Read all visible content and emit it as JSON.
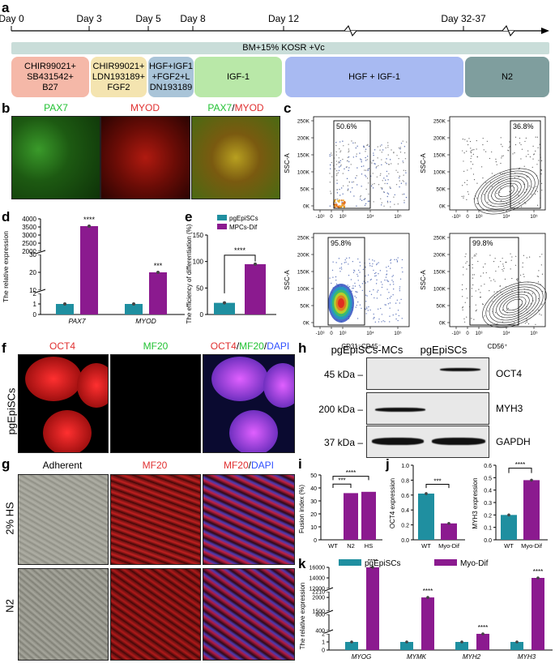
{
  "panel_letters": [
    "a",
    "b",
    "c",
    "d",
    "e",
    "f",
    "g",
    "h",
    "i",
    "j",
    "k"
  ],
  "timeline": {
    "days": [
      "Day 0",
      "Day 3",
      "Day 5",
      "Day 8",
      "Day 12",
      "Day 32-37"
    ],
    "medium": "BM+15% KOSR +Vc",
    "stages": [
      {
        "label": "CHIR99021+\nSB431542+\nB27",
        "color": "#f5b8a8"
      },
      {
        "label": "CHIR99021+\nLDN193189+\nFGF2",
        "color": "#f4e4b0"
      },
      {
        "label": "HGF+IGF1\n+FGF2+L\nDN193189",
        "color": "#a9c4d8"
      },
      {
        "label": "IGF-1",
        "color": "#b9e8a8"
      },
      {
        "label": "HGF + IGF-1",
        "color": "#a8baf2"
      },
      {
        "label": "N2",
        "color": "#7f9e9e"
      }
    ]
  },
  "panel_b": {
    "titles": [
      "PAX7",
      "MYOD",
      "PAX7",
      "/",
      "MYOD"
    ]
  },
  "panel_c": {
    "gates": [
      "50.6%",
      "36.8%",
      "95.8%",
      "99.8%"
    ],
    "ylabel": "SSC-A",
    "yticks": [
      "250K",
      "200K",
      "150K",
      "100K",
      "50K",
      "0K"
    ],
    "xticks": [
      "-10³",
      "0",
      "10³",
      "10⁴",
      "10⁵"
    ],
    "xlabel_left": "CD31⁻CD45⁻",
    "xlabel_right": "CD56⁺"
  },
  "panel_d": {
    "chart_data": {
      "type": "bar",
      "ylabel": "The relative expression",
      "categories": [
        "PAX7",
        "MYOD"
      ],
      "series": [
        {
          "name": "pgEpiSCs",
          "values": [
            1,
            1
          ]
        },
        {
          "name": "MPCs-Dif",
          "values": [
            3550,
            20
          ]
        }
      ],
      "significance": [
        "****",
        "***"
      ],
      "yticks": [
        "0",
        "1",
        "2",
        "10",
        "20",
        "30",
        "2000",
        "2500",
        "3000",
        "3500",
        "4000"
      ]
    }
  },
  "panel_e": {
    "chart_data": {
      "type": "bar",
      "ylabel": "The efficiency of differentiation (%)",
      "categories": [
        "pgEpiSCs",
        "MPCs-Dif"
      ],
      "values": [
        22,
        95
      ],
      "significance": "****",
      "yticks": [
        "0",
        "50",
        "100",
        "150"
      ]
    },
    "legend": [
      "pgEpiSCs",
      "MPCs-Dif"
    ]
  },
  "panel_f": {
    "titles": [
      "OCT4",
      "MF20",
      "OCT4",
      "/",
      "MF20",
      "/",
      "DAPI"
    ],
    "rowlabel": "pgEpiSCs"
  },
  "panel_g": {
    "titles": [
      "Adherent",
      "MF20",
      "MF20",
      "/",
      "DAPI"
    ],
    "rows": [
      "2% HS",
      "N2"
    ]
  },
  "panel_h": {
    "columns": [
      "pgEpiSCs-MCs",
      "pgEpiSCs"
    ],
    "rows": [
      {
        "kda": "45 kDa",
        "protein": "OCT4"
      },
      {
        "kda": "200 kDa",
        "protein": "MYH3"
      },
      {
        "kda": "37 kDa",
        "protein": "GAPDH"
      }
    ]
  },
  "panel_i": {
    "chart_data": {
      "type": "bar",
      "ylabel": "Fusion index (%)",
      "categories": [
        "WT",
        "N2",
        "HS"
      ],
      "values": [
        0,
        36,
        37
      ],
      "significance": [
        "***",
        "****"
      ],
      "yticks": [
        "0",
        "10",
        "20",
        "30",
        "40",
        "50"
      ]
    }
  },
  "panel_j": {
    "chart_data": [
      {
        "type": "bar",
        "ylabel": "OCT4 expression",
        "categories": [
          "WT",
          "Myo-Dif"
        ],
        "values": [
          0.62,
          0.22
        ],
        "significance": "***",
        "yticks": [
          "0.0",
          "0.2",
          "0.4",
          "0.6",
          "0.8",
          "1.0"
        ]
      },
      {
        "type": "bar",
        "ylabel": "MYH3 expression",
        "categories": [
          "WT",
          "Myo-Dif"
        ],
        "values": [
          0.2,
          0.48
        ],
        "significance": "****",
        "yticks": [
          "0.0",
          "0.1",
          "0.2",
          "0.3",
          "0.4",
          "0.5",
          "0.6"
        ]
      }
    ]
  },
  "panel_k": {
    "legend": [
      "pgEpiSCs",
      "Myo-Dif"
    ],
    "chart_data": {
      "type": "bar",
      "ylabel": "The relative expression",
      "categories": [
        "MYOG",
        "MYMK",
        "MYH2",
        "MYH3"
      ],
      "series": [
        {
          "name": "pgEpiSCs",
          "values": [
            1,
            1,
            1,
            1
          ]
        },
        {
          "name": "Myo-Dif",
          "values": [
            950,
            2000,
            2,
            14000
          ]
        }
      ],
      "significance": [
        "****",
        "****",
        "****",
        "****"
      ],
      "yticks": [
        "0",
        "1",
        "2",
        "400",
        "800",
        "1500",
        "2000",
        "2210",
        "12000",
        "14000",
        "16000"
      ]
    }
  },
  "colors": {
    "teal": "#1f8fa0",
    "purple": "#8b1a8f",
    "timeline_bar": "#c9ddd9"
  }
}
